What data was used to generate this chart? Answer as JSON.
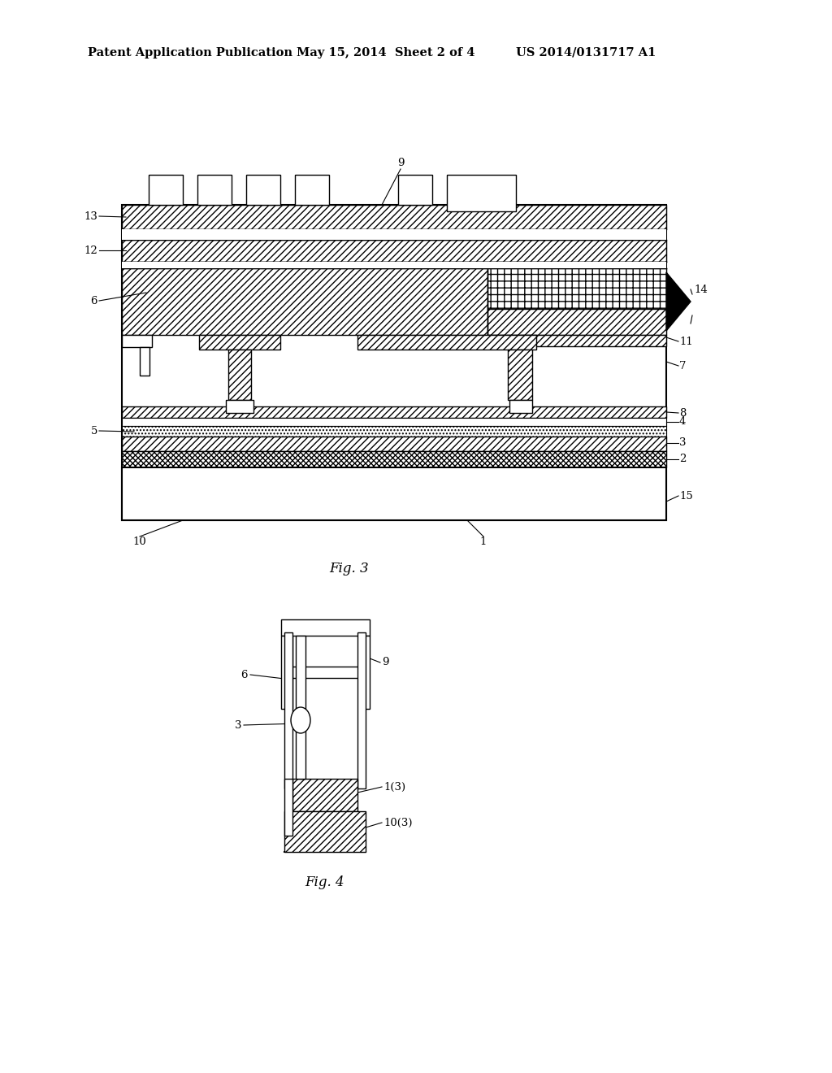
{
  "header_left": "Patent Application Publication",
  "header_mid": "May 15, 2014  Sheet 2 of 4",
  "header_right": "US 2014/0131717 A1",
  "fig3_caption": "Fig. 3",
  "fig4_caption": "Fig. 4",
  "bg_color": "#ffffff"
}
